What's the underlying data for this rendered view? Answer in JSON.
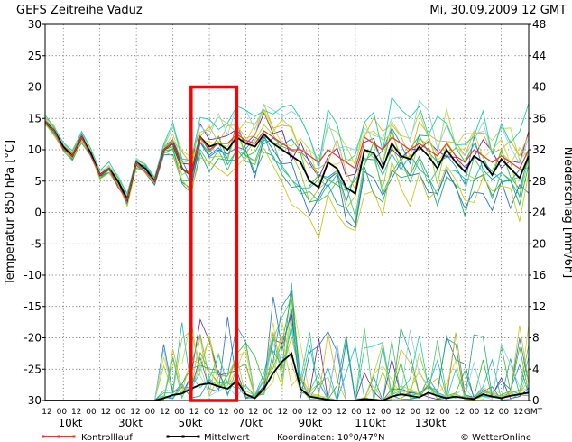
{
  "chart_data": {
    "type": "line",
    "title_left": "GEFS  Zeitreihe Vaduz",
    "title_right": "Mi, 30.09.2009  12  GMT",
    "ylabel_left": "Temperatur  850  hPa  [°C]",
    "ylabel_right": "Niederschlag  [mm/6h]",
    "ylim_left": [
      -30,
      30
    ],
    "ylim_right": [
      0,
      48
    ],
    "yticks_left": [
      "30",
      "25",
      "20",
      "15",
      "10",
      "5",
      "0",
      "-5",
      "-10",
      "-15",
      "-20",
      "-25",
      "-30"
    ],
    "yticks_right": [
      "48",
      "44",
      "40",
      "36",
      "32",
      "28",
      "24",
      "20",
      "16",
      "12",
      "8",
      "4",
      "0"
    ],
    "x_hour_labels": [
      "12",
      "00",
      "12",
      "00",
      "12",
      "00",
      "12",
      "00",
      "12",
      "00",
      "12",
      "00",
      "12",
      "00",
      "12",
      "00",
      "12",
      "00",
      "12",
      "00",
      "12",
      "00",
      "12",
      "00",
      "12",
      "00",
      "12",
      "00",
      "12",
      "00",
      "12",
      "00",
      "12",
      "GMT"
    ],
    "x_day_labels": [
      "10kt",
      "30kt",
      "50kt",
      "70kt",
      "90kt",
      "110kt",
      "130kt"
    ],
    "grid": true,
    "legend_position": "bottom",
    "legend": [
      {
        "label": "Kontrolllauf",
        "color": "#e8392f"
      },
      {
        "label": "Mittelwert",
        "color": "#000000"
      }
    ],
    "coordinates_label": "Koordinaten:  10°0/47°N",
    "credit": "© WetterOnline",
    "highlight_box": {
      "x_start_step": 16,
      "x_end_step": 21,
      "y_top": 20,
      "y_bottom": -30,
      "color": "#ff0000"
    },
    "mean_temperature": {
      "name": "Mittelwert",
      "color": "#000000",
      "values": [
        14.5,
        13,
        10.5,
        9,
        12,
        9.5,
        6,
        7,
        5,
        2,
        8,
        7,
        5,
        10,
        11,
        7,
        6,
        12,
        10.5,
        11,
        10,
        12,
        11,
        10.5,
        12.5,
        11,
        10,
        9,
        8,
        5,
        4,
        8,
        7,
        4,
        3,
        10,
        9.5,
        7,
        11,
        9,
        8.5,
        10.5,
        9,
        7,
        10,
        8,
        6.5,
        9,
        8,
        6,
        8.5,
        7,
        5.5,
        9
      ]
    },
    "control_temperature": {
      "name": "Kontrolllauf",
      "color": "#e8392f",
      "values": [
        14.5,
        13,
        10,
        9,
        12,
        9,
        6,
        7,
        4,
        2,
        8,
        6.5,
        5,
        10,
        11,
        7,
        6,
        12,
        10,
        11,
        11,
        12.5,
        11.5,
        11,
        13,
        12,
        11,
        10,
        10,
        9,
        8,
        10,
        9,
        8,
        7,
        12,
        11,
        10,
        12,
        11,
        10,
        11,
        10,
        9,
        11,
        9,
        8,
        10,
        9,
        8,
        9,
        8,
        7,
        10
      ]
    },
    "mean_precipitation": {
      "name": "Mittelwert",
      "values": [
        0,
        0,
        0,
        0,
        0,
        0,
        0,
        0,
        0,
        0,
        0,
        0,
        0,
        0.3,
        0.7,
        0.9,
        1.5,
        2,
        2.2,
        1.8,
        1.5,
        2.5,
        0.8,
        0.3,
        1.5,
        3.5,
        5,
        6,
        1.5,
        0.5,
        0.3,
        0.1,
        0,
        0,
        0,
        0.2,
        0.1,
        0,
        0.5,
        0.8,
        0.6,
        0.4,
        1,
        0.6,
        0.3,
        0.5,
        0.3,
        0.2,
        0.8,
        0.5,
        0.3,
        0.6,
        0.8,
        1
      ]
    }
  }
}
